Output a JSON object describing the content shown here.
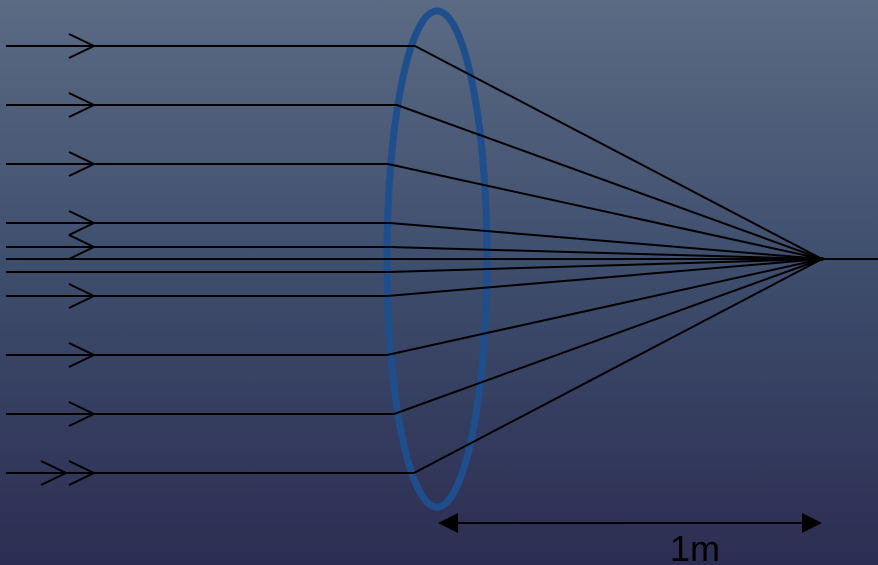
{
  "diagram": {
    "distance_label": "1m",
    "colors": {
      "lens": "#1f4e8c",
      "rays": "#000000",
      "axis": "#000000",
      "arrow": "#000000"
    },
    "icons": {
      "ray_direction": "chevron-right-icon",
      "dimension_arrow": "double-headed-arrow-icon"
    }
  }
}
